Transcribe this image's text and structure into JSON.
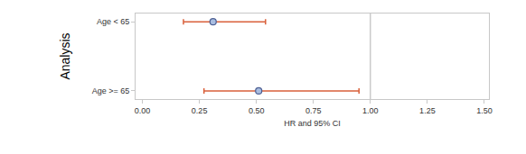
{
  "chart_data": {
    "type": "forest",
    "x_label": "HR and 95% CI",
    "y_label": "Analysis",
    "categories": [
      "Age < 65",
      "Age >= 65"
    ],
    "values": [
      0.31,
      0.51
    ],
    "lower": [
      0.18,
      0.27
    ],
    "upper": [
      0.54,
      0.95
    ],
    "color": "#d9603b",
    "marker": "circle",
    "reference_line": 1,
    "xlim": [
      -0.03,
      1.52
    ],
    "xticks": [
      {
        "value": 0,
        "label": "0.00"
      },
      {
        "value": 0.25,
        "label": "0.25"
      },
      {
        "value": 0.5,
        "label": "0.50"
      },
      {
        "value": 0.75,
        "label": "0.75"
      },
      {
        "value": 1,
        "label": "1.00"
      },
      {
        "value": 1.25,
        "label": "1.25"
      },
      {
        "value": 1.5,
        "label": "1.50"
      }
    ],
    "grid": false
  }
}
